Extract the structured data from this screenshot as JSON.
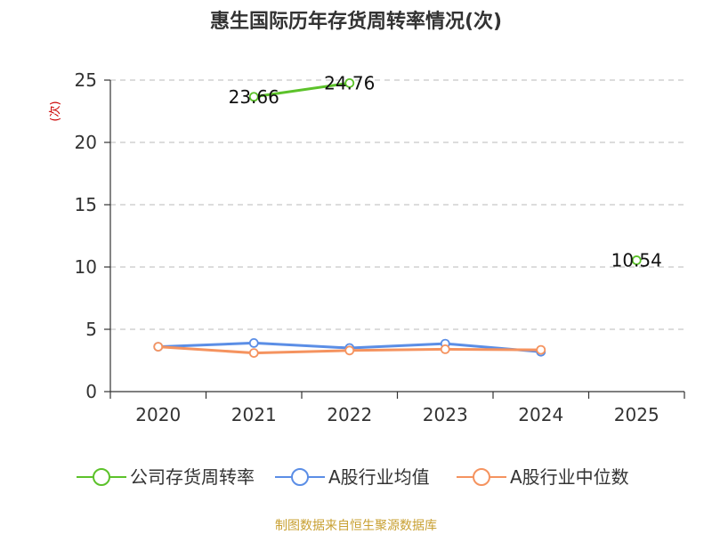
{
  "chart_data": {
    "type": "line",
    "title": "惠生国际历年存货周转率情况(次)",
    "ylabel": "(次)",
    "xlabel": "",
    "categories": [
      "2020",
      "2021",
      "2022",
      "2023",
      "2024",
      "2025"
    ],
    "ylim": [
      0,
      25
    ],
    "yticks": [
      0,
      5,
      10,
      15,
      20,
      25
    ],
    "grid": true,
    "legend_position": "bottom",
    "series": [
      {
        "name": "公司存货周转率",
        "color": "#5cc22a",
        "values": [
          null,
          23.66,
          24.76,
          null,
          null,
          10.54
        ],
        "labels": [
          null,
          "23.66",
          "24.76",
          null,
          null,
          "10.54"
        ]
      },
      {
        "name": "A股行业均值",
        "color": "#5b8ee6",
        "values": [
          3.6,
          3.9,
          3.5,
          3.85,
          3.2,
          null
        ],
        "labels": []
      },
      {
        "name": "A股行业中位数",
        "color": "#f5935f",
        "values": [
          3.6,
          3.1,
          3.3,
          3.4,
          3.35,
          null
        ],
        "labels": []
      }
    ]
  },
  "source_text": "制图数据来自恒生聚源数据库"
}
